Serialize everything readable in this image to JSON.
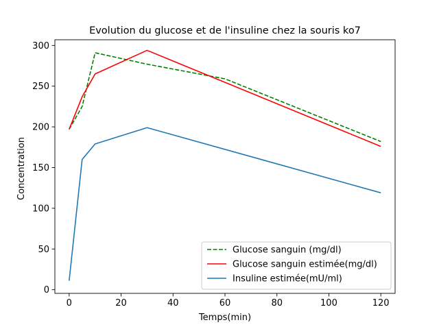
{
  "chart_data": {
    "type": "line",
    "title": "Evolution du glucose et de l'insuline chez la souris ko7",
    "xlabel": "Temps(min)",
    "ylabel": "Concentration",
    "xlim": [
      -5.5,
      125.5
    ],
    "ylim": [
      -4.5,
      307
    ],
    "xticks": [
      0,
      20,
      40,
      60,
      80,
      100,
      120
    ],
    "yticks": [
      0,
      50,
      100,
      150,
      200,
      250,
      300
    ],
    "grid": false,
    "legend_position": "lower-right",
    "series": [
      {
        "name": "Glucose sanguin (mg/dl)",
        "color": "#008000",
        "dash": "dashed",
        "x": [
          0,
          5,
          10,
          30,
          60,
          120
        ],
        "y": [
          197,
          225,
          291,
          277,
          259,
          182
        ]
      },
      {
        "name": "Glucose sanguin estimée(mg/dl)",
        "color": "#ff0000",
        "dash": "solid",
        "x": [
          0,
          5,
          10,
          30,
          120
        ],
        "y": [
          197,
          237,
          265,
          294,
          176
        ]
      },
      {
        "name": "Insuline estimée(mU/ml)",
        "color": "#1f77b4",
        "dash": "solid",
        "x": [
          0,
          5,
          10,
          30,
          120
        ],
        "y": [
          11,
          160,
          179,
          199,
          119
        ]
      }
    ]
  }
}
